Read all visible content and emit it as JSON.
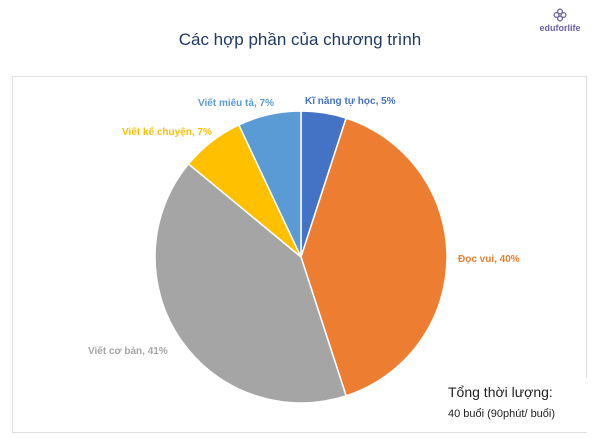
{
  "header": {
    "title": "Các hợp phần của chương trình",
    "brand": "eduforlife"
  },
  "chart_data": {
    "type": "pie",
    "title": "Các hợp phần của chương trình",
    "slices": [
      {
        "label": "Kĩ năng tự học, 5%",
        "name": "Kĩ năng tự học",
        "value": 5,
        "color": "#4472c4"
      },
      {
        "label": "Đọc vui, 40%",
        "name": "Đọc vui",
        "value": 40,
        "color": "#ed7d31"
      },
      {
        "label": "Viết cơ bản, 41%",
        "name": "Viết cơ bản",
        "value": 41,
        "color": "#a5a5a5"
      },
      {
        "label": "Viết kể chuyện, 7%",
        "name": "Viết kể chuyện",
        "value": 7,
        "color": "#ffc000"
      },
      {
        "label": "Viết miêu tả, 7%",
        "name": "Viết miêu tả",
        "value": 7,
        "color": "#5b9bd5"
      }
    ],
    "start": "12 o'clock",
    "direction": "clockwise"
  },
  "summary": {
    "title": "Tổng thời lượng:",
    "value": "40 buổi (90phút/ buổi)"
  }
}
